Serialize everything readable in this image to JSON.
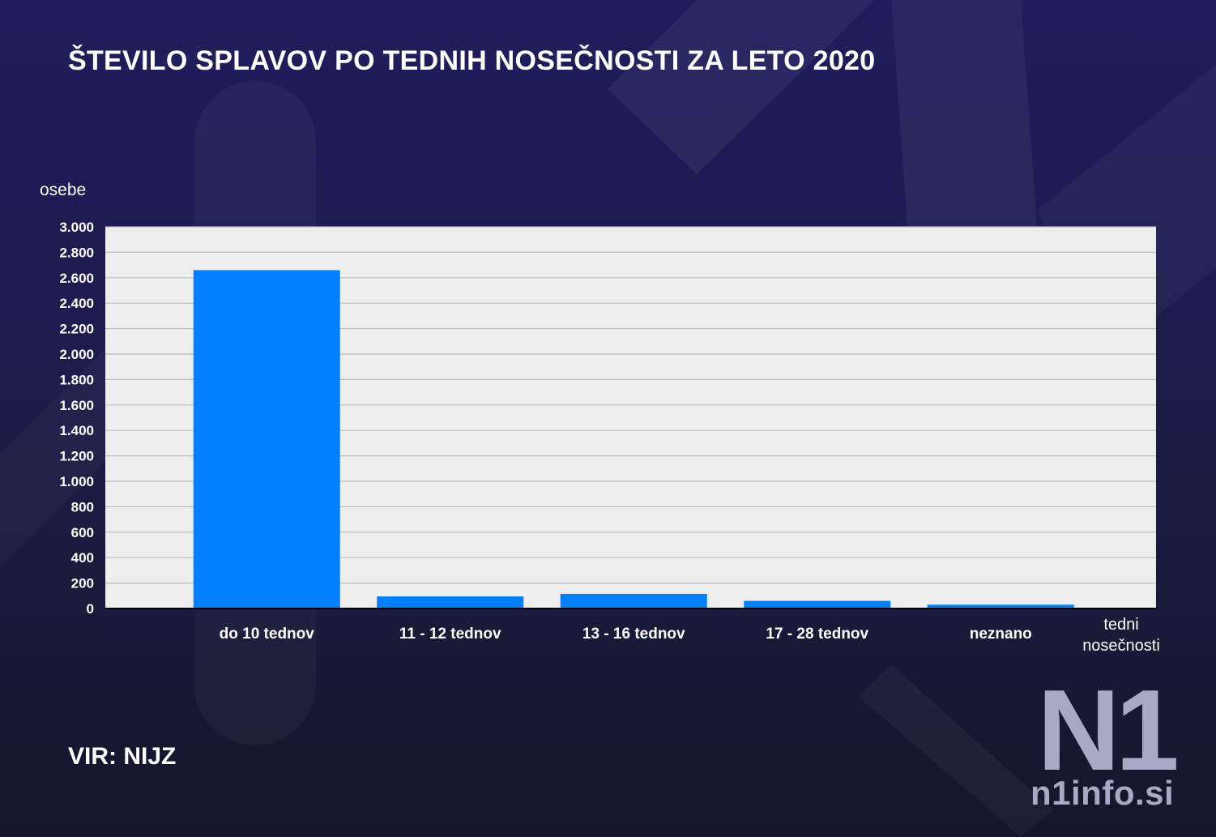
{
  "header": {
    "title": "ŠTEVILO SPLAVOV PO TEDNIH NOSEČNOSTI ZA LETO 2020"
  },
  "chart_data": {
    "type": "bar",
    "title": "ŠTEVILO SPLAVOV PO TEDNIH NOSEČNOSTI ZA LETO 2020",
    "ylabel": "osebe",
    "xlabel": "tedni nosečnosti",
    "xlabel_lines": [
      "tedni",
      "nosečnosti"
    ],
    "categories": [
      "do 10 tednov",
      "11 - 12 tednov",
      "13 - 16 tednov",
      "17 - 28 tednov",
      "neznano"
    ],
    "values": [
      2660,
      95,
      115,
      60,
      30
    ],
    "ylim": [
      0,
      3000
    ],
    "y_ticks": [
      0,
      200,
      400,
      600,
      800,
      1000,
      1200,
      1400,
      1600,
      1800,
      2000,
      2200,
      2400,
      2600,
      2800,
      3000
    ],
    "y_tick_labels": [
      "0",
      "200",
      "400",
      "600",
      "800",
      "1.000",
      "1.200",
      "1.400",
      "1.600",
      "1.800",
      "2.000",
      "2.200",
      "2.400",
      "2.600",
      "2.800",
      "3.000"
    ],
    "grid": true,
    "legend": "none",
    "bar_color": "#0080ff",
    "plot_background": "#eeeeee",
    "grid_color": "#bdbdbd"
  },
  "footer": {
    "source": "VIR: NIJZ"
  },
  "brand": {
    "logo_text": "N1",
    "site": "n1info.si",
    "logo_color": "#a9a9c6"
  }
}
